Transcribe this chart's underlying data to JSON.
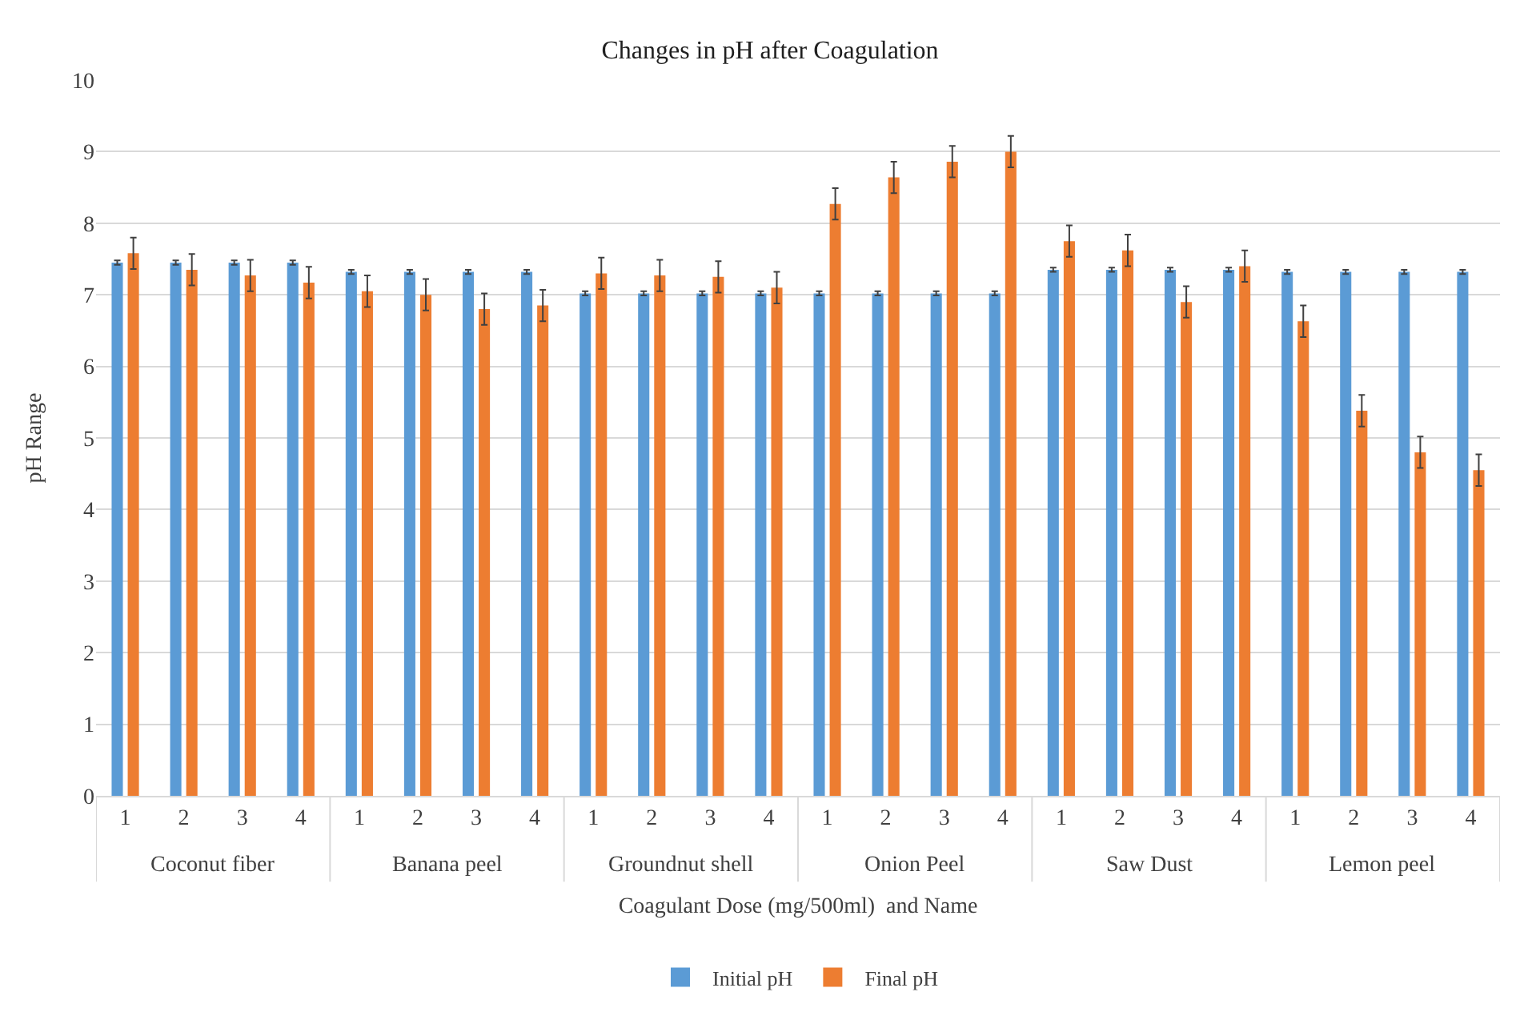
{
  "chart_data": {
    "type": "bar",
    "title": "Changes in pH after Coagulation",
    "xlabel": "Coagulant Dose (mg/500ml)  and Name",
    "ylabel": "pH Range",
    "categories": [
      "1",
      "2",
      "3",
      "4",
      "1",
      "2",
      "3",
      "4",
      "1",
      "2",
      "3",
      "4",
      "1",
      "2",
      "3",
      "4",
      "1",
      "2",
      "3",
      "4",
      "1",
      "2",
      "3",
      "4"
    ],
    "annotations": [
      "Coconut fiber",
      "Banana peel",
      "Groundnut shell",
      "Onion Peel",
      "Saw Dust",
      "Lemon peel"
    ],
    "series": [
      {
        "name": "Initial pH",
        "color": "#5b9bd5",
        "values": [
          7.45,
          7.45,
          7.45,
          7.45,
          7.32,
          7.32,
          7.32,
          7.32,
          7.02,
          7.02,
          7.02,
          7.02,
          7.02,
          7.02,
          7.02,
          7.02,
          7.35,
          7.35,
          7.35,
          7.35,
          7.32,
          7.32,
          7.32,
          7.32
        ],
        "errors": [
          0.03,
          0.03,
          0.03,
          0.03,
          0.03,
          0.03,
          0.03,
          0.03,
          0.03,
          0.03,
          0.03,
          0.03,
          0.03,
          0.03,
          0.03,
          0.03,
          0.03,
          0.03,
          0.03,
          0.03,
          0.03,
          0.03,
          0.03,
          0.03
        ]
      },
      {
        "name": "Final pH",
        "color": "#ed7d31",
        "values": [
          7.58,
          7.35,
          7.27,
          7.17,
          7.05,
          7.0,
          6.8,
          6.85,
          7.3,
          7.27,
          7.25,
          7.1,
          8.27,
          8.64,
          8.86,
          9.0,
          7.75,
          7.62,
          6.9,
          7.4,
          6.63,
          5.38,
          4.8,
          4.55
        ],
        "errors": [
          0.22,
          0.22,
          0.22,
          0.22,
          0.22,
          0.22,
          0.22,
          0.22,
          0.22,
          0.22,
          0.22,
          0.22,
          0.22,
          0.22,
          0.22,
          0.22,
          0.22,
          0.22,
          0.22,
          0.22,
          0.22,
          0.22,
          0.22,
          0.22
        ]
      }
    ],
    "ylim": [
      0,
      10
    ],
    "yticks": [
      0,
      1,
      2,
      3,
      4,
      5,
      6,
      7,
      8,
      9,
      10
    ],
    "grid": "y",
    "legend": "bottom"
  }
}
